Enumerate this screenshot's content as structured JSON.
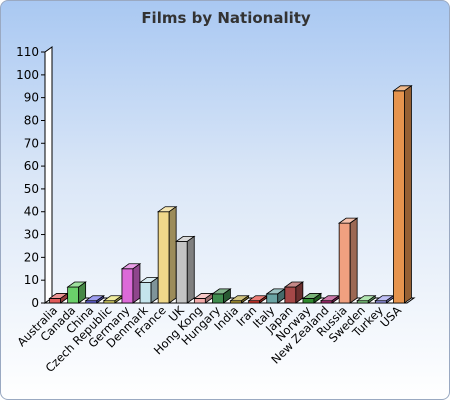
{
  "chart_data": {
    "type": "bar",
    "title": "Films by Nationality",
    "xlabel": "",
    "ylabel": "",
    "ylim": [
      0,
      110
    ],
    "yticks": [
      0,
      10,
      20,
      30,
      40,
      50,
      60,
      70,
      80,
      90,
      100,
      110
    ],
    "grid": false,
    "legend": "none",
    "categories": [
      "Australia",
      "Canada",
      "China",
      "Czech Republic",
      "Germany",
      "Denmark",
      "France",
      "UK",
      "Hong Kong",
      "Hungary",
      "India",
      "Iran",
      "Italy",
      "Japan",
      "Norway",
      "New Zealand",
      "Russia",
      "Sweden",
      "Turkey",
      "USA"
    ],
    "values": [
      2,
      7,
      1,
      1,
      15,
      9,
      40,
      27,
      2,
      4,
      1,
      1,
      4,
      7,
      2,
      1,
      35,
      1,
      1,
      93
    ],
    "colors": [
      "#e05a5a",
      "#6ad06a",
      "#6a6ae6",
      "#e6e06a",
      "#dc6ad8",
      "#c4e4ec",
      "#f0d88a",
      "#c4c4c4",
      "#f2aaaa",
      "#3f8c4e",
      "#b8a23a",
      "#e03a30",
      "#6aa4a4",
      "#a54848",
      "#2f8a2f",
      "#b0307a",
      "#f0a080",
      "#88d888",
      "#9c9cf0",
      "#e6944e"
    ]
  }
}
